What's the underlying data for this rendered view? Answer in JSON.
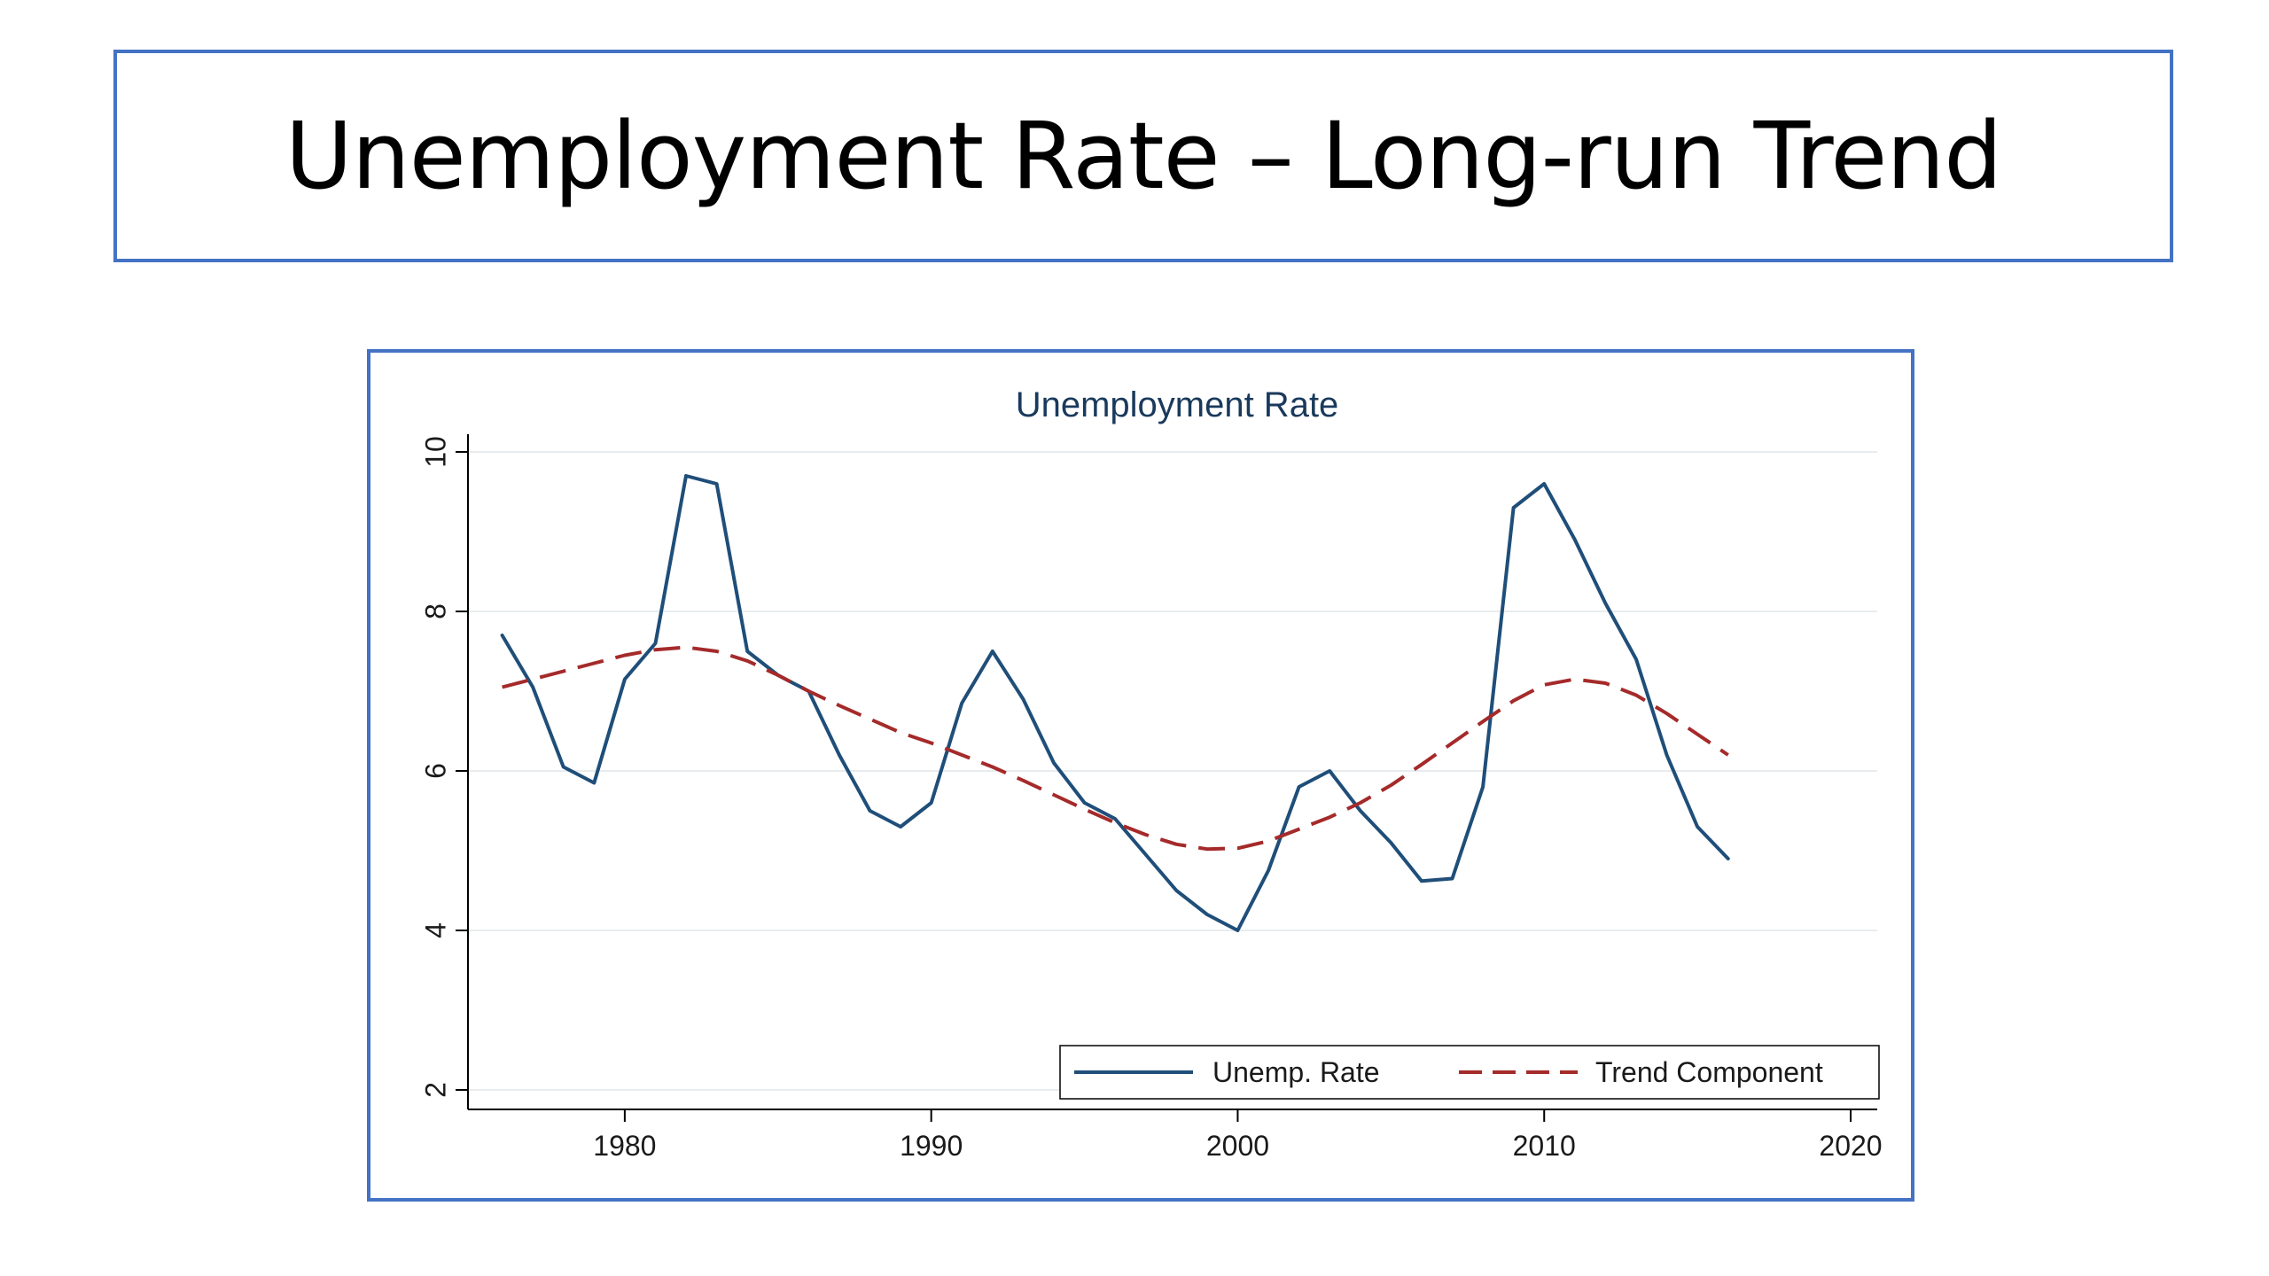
{
  "slide": {
    "title": "Unemployment Rate – Long-run Trend"
  },
  "chart_data": {
    "type": "line",
    "title": "Unemployment Rate",
    "xlabel": "",
    "ylabel": "",
    "xlim": [
      1975,
      2020
    ],
    "ylim": [
      2,
      10
    ],
    "x_ticks": [
      1980,
      1990,
      2000,
      2010,
      2020
    ],
    "y_ticks": [
      2,
      4,
      6,
      8,
      10
    ],
    "grid": true,
    "legend_position": "bottom-right",
    "series": [
      {
        "name": "Unemp. Rate",
        "style": "solid",
        "color": "#1f4e79",
        "x": [
          1976,
          1977,
          1978,
          1979,
          1980,
          1981,
          1982,
          1983,
          1984,
          1985,
          1986,
          1987,
          1988,
          1989,
          1990,
          1991,
          1992,
          1993,
          1994,
          1995,
          1996,
          1997,
          1998,
          1999,
          2000,
          2001,
          2002,
          2003,
          2004,
          2005,
          2006,
          2007,
          2008,
          2009,
          2010,
          2011,
          2012,
          2013,
          2014,
          2015,
          2016
        ],
        "values": [
          7.7,
          7.05,
          6.05,
          5.85,
          7.15,
          7.6,
          9.7,
          9.6,
          7.5,
          7.2,
          7.0,
          6.2,
          5.5,
          5.3,
          5.6,
          6.85,
          7.5,
          6.9,
          6.1,
          5.6,
          5.4,
          4.95,
          4.5,
          4.2,
          4.0,
          4.75,
          5.8,
          6.0,
          5.5,
          5.1,
          4.62,
          4.65,
          5.8,
          9.3,
          9.6,
          8.9,
          8.1,
          7.4,
          6.2,
          5.3,
          4.9
        ]
      },
      {
        "name": "Trend Component",
        "style": "dashed",
        "color": "#a52a2a",
        "x": [
          1976,
          1977,
          1978,
          1979,
          1980,
          1981,
          1982,
          1983,
          1984,
          1985,
          1986,
          1987,
          1988,
          1989,
          1990,
          1991,
          1992,
          1993,
          1994,
          1995,
          1996,
          1997,
          1998,
          1999,
          2000,
          2001,
          2002,
          2003,
          2004,
          2005,
          2006,
          2007,
          2008,
          2009,
          2010,
          2011,
          2012,
          2013,
          2014,
          2015,
          2016
        ],
        "values": [
          7.05,
          7.15,
          7.25,
          7.35,
          7.45,
          7.52,
          7.55,
          7.5,
          7.38,
          7.2,
          7.0,
          6.82,
          6.65,
          6.48,
          6.35,
          6.2,
          6.05,
          5.88,
          5.7,
          5.52,
          5.35,
          5.2,
          5.08,
          5.02,
          5.03,
          5.12,
          5.27,
          5.42,
          5.6,
          5.82,
          6.08,
          6.35,
          6.62,
          6.88,
          7.08,
          7.15,
          7.1,
          6.95,
          6.72,
          6.46,
          6.2
        ]
      }
    ]
  }
}
